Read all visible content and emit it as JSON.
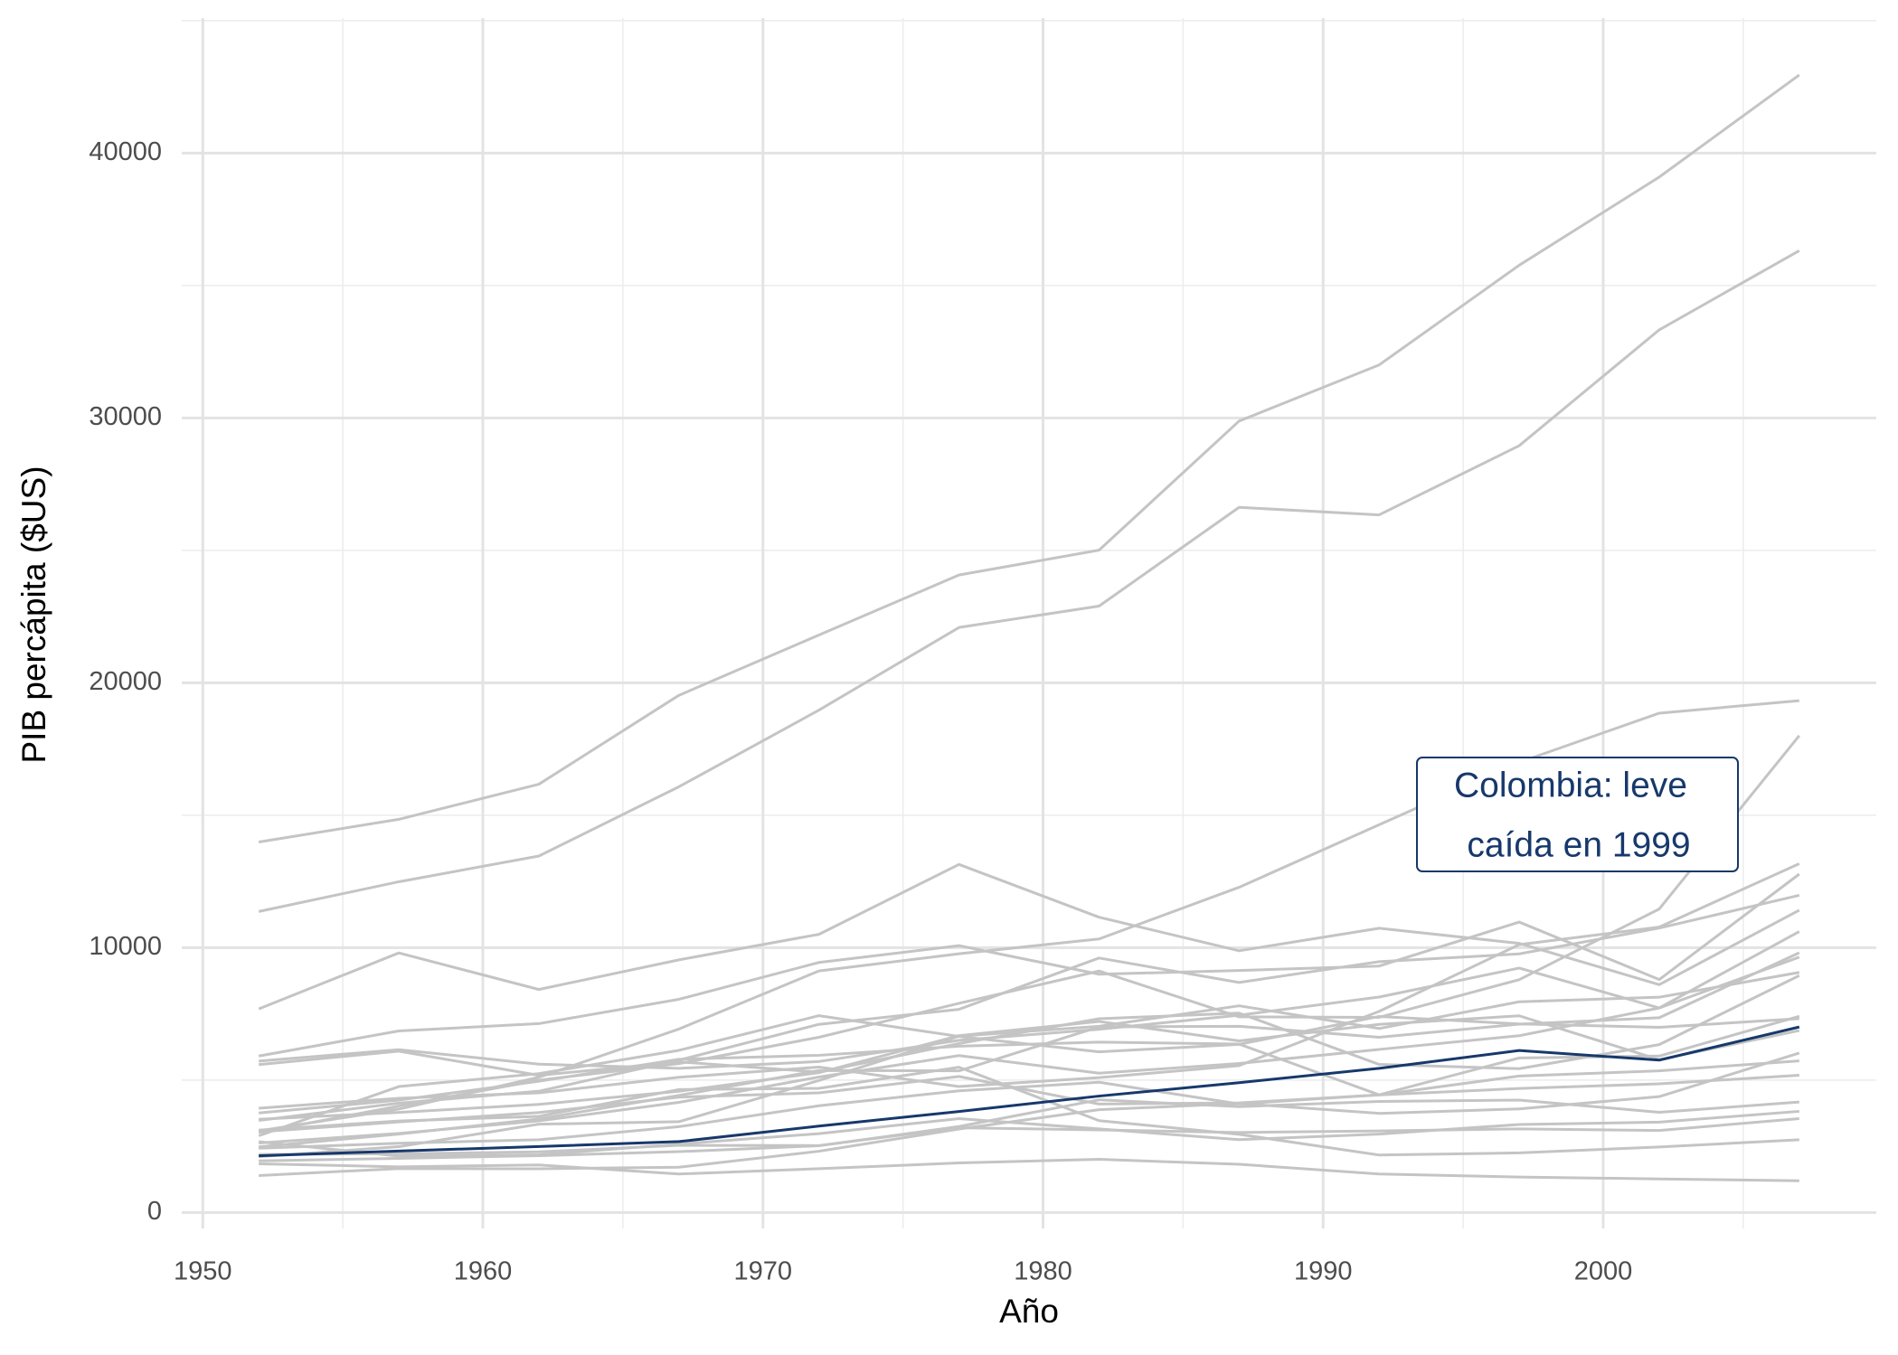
{
  "chart_data": {
    "type": "line",
    "x_label": "Año",
    "y_label": "PIB percápita ($US)",
    "annotation": [
      "Colombia: leve",
      "caída en 1999"
    ],
    "x": [
      1952,
      1957,
      1962,
      1967,
      1972,
      1977,
      1982,
      1987,
      1992,
      1997,
      2002,
      2007
    ],
    "xlim": [
      1949.25,
      2009.75
    ],
    "xticks": [
      1950,
      1960,
      1970,
      1980,
      1990,
      2000
    ],
    "ylim": [
      -600,
      45100
    ],
    "yticks": [
      0,
      10000,
      20000,
      30000,
      40000
    ],
    "grid": true,
    "series": [
      {
        "color": "#c4c4c4",
        "values": [
          13990,
          14847,
          16173,
          19530,
          21806,
          24073,
          25010,
          29884,
          32004,
          35767,
          39097,
          42952
        ]
      },
      {
        "color": "#c4c4c4",
        "values": [
          11367,
          12490,
          13462,
          16077,
          18971,
          22091,
          22899,
          26627,
          26343,
          28955,
          33329,
          36319
        ]
      },
      {
        "color": "#c4c4c4",
        "values": [
          3082,
          3908,
          5108,
          6929,
          9123,
          9770,
          10331,
          12281,
          14642,
          16999,
          18856,
          19329
        ]
      },
      {
        "color": "#c4c4c4",
        "values": [
          3024,
          4022,
          4997,
          5622,
          6619,
          7900,
          9119,
          7389,
          7370,
          8793,
          11461,
          18009
        ]
      },
      {
        "color": "#c4c4c4",
        "values": [
          7690,
          9803,
          8423,
          9541,
          10506,
          13144,
          11152,
          9884,
          10734,
          10165,
          8605,
          11416
        ]
      },
      {
        "color": "#c4c4c4",
        "values": [
          5911,
          6857,
          7133,
          8053,
          9443,
          10079,
          8998,
          9140,
          9308,
          10968,
          8798,
          12779
        ]
      },
      {
        "color": "#c4c4c4",
        "values": [
          3940,
          4316,
          4520,
          5107,
          5494,
          4757,
          5096,
          5547,
          7596,
          10118,
          10779,
          13172
        ]
      },
      {
        "color": "#c4c4c4",
        "values": [
          3478,
          4132,
          4582,
          5755,
          7106,
          7674,
          9611,
          8688,
          9472,
          9767,
          10742,
          11978
        ]
      },
      {
        "color": "#c4c4c4",
        "values": [
          5717,
          6151,
          5603,
          5445,
          5703,
          6504,
          6920,
          7452,
          8137,
          9231,
          7727,
          10611
        ]
      },
      {
        "color": "#c4c4c4",
        "values": [
          2480,
          2961,
          3536,
          4421,
          5364,
          5351,
          7010,
          7034,
          6619,
          7114,
          7356,
          9809
        ]
      },
      {
        "color": "#c4c4c4",
        "values": [
          2627,
          2990,
          3460,
          4161,
          5118,
          5927,
          5262,
          5629,
          6160,
          6677,
          7723,
          9645
        ]
      },
      {
        "color": "#c4c4c4",
        "values": [
          2109,
          2487,
          3337,
          3430,
          4986,
          6660,
          7031,
          7807,
          6950,
          7958,
          8131,
          9066
        ]
      },
      {
        "color": "#c4c4c4",
        "values": [
          5587,
          6093,
          5181,
          5690,
          5305,
          6381,
          7317,
          7532,
          5593,
          5432,
          6341,
          8948
        ]
      },
      {
        "color": "#c4c4c4",
        "values": [
          3522,
          3781,
          4086,
          4580,
          5281,
          6680,
          7214,
          6482,
          7104,
          7429,
          5773,
          6873
        ]
      },
      {
        "color": "#c4c4c4",
        "values": [
          3759,
          4245,
          4957,
          5788,
          5938,
          6281,
          6435,
          6361,
          4446,
          5838,
          5909,
          7409
        ]
      },
      {
        "color": "#c4c4c4",
        "values": [
          2899,
          4757,
          5246,
          6125,
          7434,
          6650,
          6068,
          6351,
          7405,
          7122,
          6995,
          7321
        ]
      },
      {
        "color": "#c4c4c4",
        "values": [
          1398,
          1662,
          1654,
          1712,
          2316,
          3154,
          3883,
          4118,
          3745,
          3915,
          4377,
          6025
        ]
      },
      {
        "color": "#c4c4c4",
        "values": [
          2428,
          2617,
          2750,
          3243,
          4032,
          4597,
          4920,
          4101,
          4444,
          4684,
          4859,
          5186
        ]
      },
      {
        "color": "#c4c4c4",
        "values": [
          3048,
          3421,
          3777,
          4358,
          4520,
          5138,
          4098,
          4140,
          4444,
          5154,
          5352,
          5728
        ]
      },
      {
        "color": "#c4c4c4",
        "values": [
          1952,
          2046,
          2148,
          2299,
          2523,
          3248,
          4258,
          3999,
          4196,
          4248,
          3784,
          4173
        ]
      },
      {
        "color": "#c4c4c4",
        "values": [
          2677,
          2128,
          2181,
          2587,
          2980,
          3548,
          3157,
          2753,
          2962,
          3326,
          3413,
          3822
        ]
      },
      {
        "color": "#c4c4c4",
        "values": [
          2195,
          2220,
          2292,
          2538,
          2529,
          3203,
          3121,
          3023,
          3082,
          3160,
          3099,
          3548
        ]
      },
      {
        "color": "#c4c4c4",
        "values": [
          3112,
          3458,
          3634,
          4643,
          4689,
          5487,
          3471,
          2955,
          2171,
          2253,
          2475,
          2749
        ]
      },
      {
        "color": "#c4c4c4",
        "values": [
          1840,
          1727,
          1797,
          1456,
          1655,
          1874,
          2011,
          1823,
          1456,
          1342,
          1270,
          1202
        ]
      },
      {
        "color": "#17386b",
        "values": [
          2144,
          2324,
          2492,
          2679,
          3265,
          3816,
          4398,
          4903,
          5445,
          6118,
          5755,
          7007
        ]
      }
    ]
  }
}
